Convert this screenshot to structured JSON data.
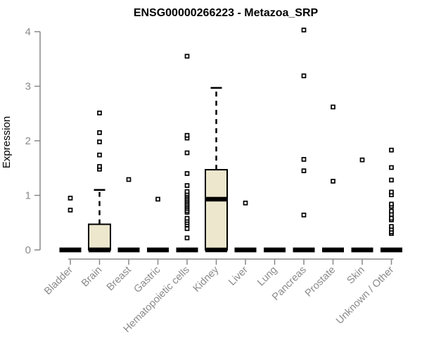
{
  "colors": {
    "background": "#FFFFFF",
    "title": "#000000",
    "axis": "#888888",
    "tick_label": "#8A8A8A",
    "box_fill": "#ECE7CD",
    "box_stroke": "#000000",
    "median": "#000000",
    "whisker": "#000000",
    "outlier_fill": "#FFFFFF",
    "outlier_stroke": "#000000"
  },
  "chart_data": {
    "type": "boxplot",
    "title": "ENSG00000266223 - Metazoa_SRP",
    "ylabel": "Expression",
    "xlabel": "",
    "ylim": [
      0,
      4
    ],
    "yticks": [
      0,
      1,
      2,
      3,
      4
    ],
    "grid": false,
    "legend": "none",
    "categories": [
      "Bladder",
      "Brain",
      "Breast",
      "Gastric",
      "Hematopoietic cells",
      "Kidney",
      "Liver",
      "Lung",
      "Pancreas",
      "Prostate",
      "Skin",
      "Unknown / Other"
    ],
    "series": [
      {
        "name": "Bladder",
        "q1": 0,
        "median": 0,
        "q3": 0,
        "whisker_low": 0,
        "whisker_high": 0,
        "outliers": [
          0.73,
          0.95
        ]
      },
      {
        "name": "Brain",
        "q1": 0,
        "median": 0,
        "q3": 0.47,
        "whisker_low": 0,
        "whisker_high": 1.1,
        "outliers": [
          1.48,
          1.53,
          1.74,
          1.98,
          2.15,
          2.51
        ]
      },
      {
        "name": "Breast",
        "q1": 0,
        "median": 0,
        "q3": 0,
        "whisker_low": 0,
        "whisker_high": 0,
        "outliers": [
          1.29
        ]
      },
      {
        "name": "Gastric",
        "q1": 0,
        "median": 0,
        "q3": 0,
        "whisker_low": 0,
        "whisker_high": 0,
        "outliers": [
          0.93
        ]
      },
      {
        "name": "Hematopoietic cells",
        "q1": 0,
        "median": 0,
        "q3": 0,
        "whisker_low": 0,
        "whisker_high": 0,
        "outliers": [
          0.22,
          0.39,
          0.46,
          0.5,
          0.54,
          0.58,
          0.69,
          0.72,
          0.76,
          0.79,
          0.82,
          0.85,
          0.88,
          0.91,
          0.94,
          0.97,
          1.0,
          1.03,
          1.07,
          1.18,
          1.4,
          1.78,
          2.05,
          2.1,
          3.55
        ]
      },
      {
        "name": "Kidney",
        "q1": 0,
        "median": 0.93,
        "q3": 1.47,
        "whisker_low": 0,
        "whisker_high": 2.97,
        "outliers": []
      },
      {
        "name": "Liver",
        "q1": 0,
        "median": 0,
        "q3": 0,
        "whisker_low": 0,
        "whisker_high": 0,
        "outliers": [
          0.86
        ]
      },
      {
        "name": "Lung",
        "q1": 0,
        "median": 0,
        "q3": 0,
        "whisker_low": 0,
        "whisker_high": 0,
        "outliers": []
      },
      {
        "name": "Pancreas",
        "q1": 0,
        "median": 0,
        "q3": 0,
        "whisker_low": 0,
        "whisker_high": 0,
        "outliers": [
          0.64,
          1.45,
          1.66,
          3.19,
          4.03
        ]
      },
      {
        "name": "Prostate",
        "q1": 0,
        "median": 0,
        "q3": 0,
        "whisker_low": 0,
        "whisker_high": 0,
        "outliers": [
          1.26,
          2.62
        ]
      },
      {
        "name": "Skin",
        "q1": 0,
        "median": 0,
        "q3": 0,
        "whisker_low": 0,
        "whisker_high": 0,
        "outliers": [
          1.65
        ]
      },
      {
        "name": "Unknown / Other",
        "q1": 0,
        "median": 0,
        "q3": 0,
        "whisker_low": 0,
        "whisker_high": 0,
        "outliers": [
          0.3,
          0.33,
          0.38,
          0.43,
          0.55,
          0.58,
          0.65,
          0.71,
          0.8,
          0.84,
          1.01,
          1.06,
          1.28,
          1.51,
          1.83
        ]
      }
    ]
  }
}
